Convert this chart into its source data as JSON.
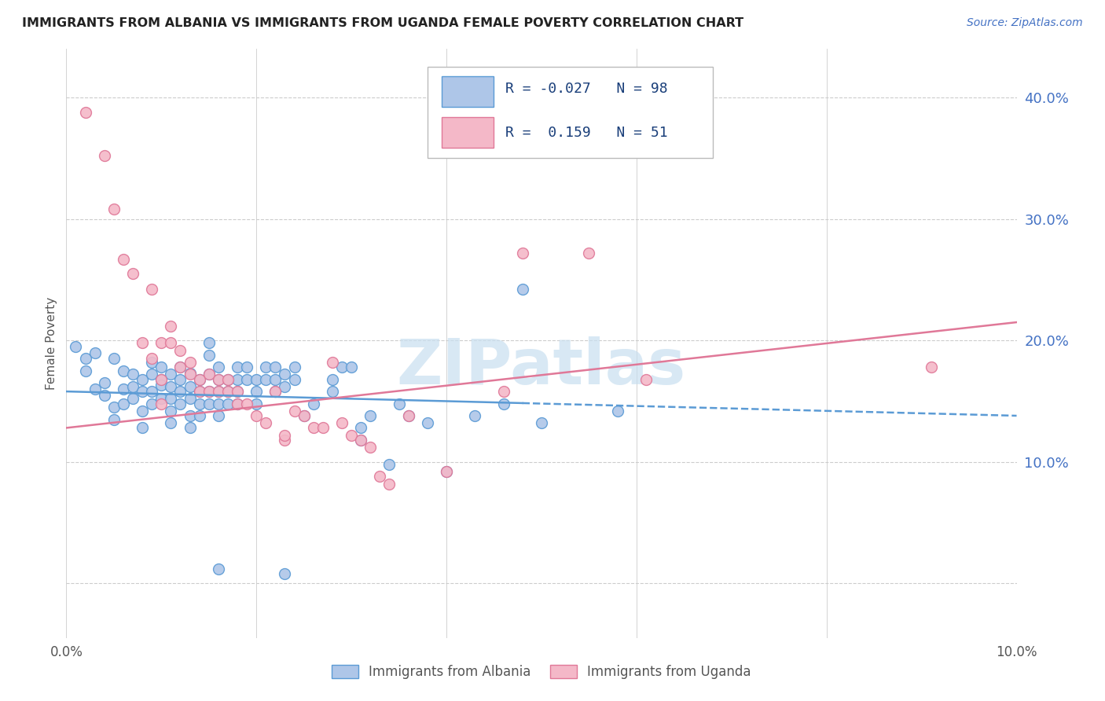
{
  "title": "IMMIGRANTS FROM ALBANIA VS IMMIGRANTS FROM UGANDA FEMALE POVERTY CORRELATION CHART",
  "source": "Source: ZipAtlas.com",
  "ylabel": "Female Poverty",
  "y_ticks": [
    0.0,
    0.1,
    0.2,
    0.3,
    0.4
  ],
  "y_tick_labels": [
    "",
    "10.0%",
    "20.0%",
    "30.0%",
    "40.0%"
  ],
  "x_range": [
    0.0,
    0.1
  ],
  "y_range": [
    -0.045,
    0.44
  ],
  "albania_R": -0.027,
  "albania_N": 98,
  "uganda_R": 0.159,
  "uganda_N": 51,
  "albania_color": "#aec6e8",
  "uganda_color": "#f4b8c8",
  "albania_edge_color": "#5b9bd5",
  "uganda_edge_color": "#e07898",
  "albania_line_color": "#5b9bd5",
  "uganda_line_color": "#e07898",
  "watermark_color": "#c8dff0",
  "legend_label_albania": "Immigrants from Albania",
  "legend_label_uganda": "Immigrants from Uganda",
  "albania_line_y0": 0.158,
  "albania_line_y1": 0.138,
  "uganda_line_y0": 0.128,
  "uganda_line_y1": 0.215,
  "albania_scatter": [
    [
      0.001,
      0.195
    ],
    [
      0.002,
      0.185
    ],
    [
      0.002,
      0.175
    ],
    [
      0.003,
      0.19
    ],
    [
      0.003,
      0.16
    ],
    [
      0.004,
      0.155
    ],
    [
      0.004,
      0.165
    ],
    [
      0.005,
      0.185
    ],
    [
      0.005,
      0.145
    ],
    [
      0.005,
      0.135
    ],
    [
      0.006,
      0.175
    ],
    [
      0.006,
      0.16
    ],
    [
      0.006,
      0.148
    ],
    [
      0.007,
      0.172
    ],
    [
      0.007,
      0.162
    ],
    [
      0.007,
      0.152
    ],
    [
      0.008,
      0.168
    ],
    [
      0.008,
      0.158
    ],
    [
      0.008,
      0.142
    ],
    [
      0.008,
      0.128
    ],
    [
      0.009,
      0.182
    ],
    [
      0.009,
      0.172
    ],
    [
      0.009,
      0.158
    ],
    [
      0.009,
      0.148
    ],
    [
      0.01,
      0.178
    ],
    [
      0.01,
      0.168
    ],
    [
      0.01,
      0.163
    ],
    [
      0.01,
      0.152
    ],
    [
      0.011,
      0.172
    ],
    [
      0.011,
      0.162
    ],
    [
      0.011,
      0.152
    ],
    [
      0.011,
      0.142
    ],
    [
      0.011,
      0.132
    ],
    [
      0.012,
      0.178
    ],
    [
      0.012,
      0.168
    ],
    [
      0.012,
      0.158
    ],
    [
      0.012,
      0.148
    ],
    [
      0.013,
      0.173
    ],
    [
      0.013,
      0.162
    ],
    [
      0.013,
      0.152
    ],
    [
      0.013,
      0.138
    ],
    [
      0.013,
      0.128
    ],
    [
      0.014,
      0.168
    ],
    [
      0.014,
      0.158
    ],
    [
      0.014,
      0.148
    ],
    [
      0.014,
      0.138
    ],
    [
      0.015,
      0.198
    ],
    [
      0.015,
      0.188
    ],
    [
      0.015,
      0.172
    ],
    [
      0.015,
      0.158
    ],
    [
      0.015,
      0.148
    ],
    [
      0.016,
      0.178
    ],
    [
      0.016,
      0.168
    ],
    [
      0.016,
      0.158
    ],
    [
      0.016,
      0.148
    ],
    [
      0.016,
      0.138
    ],
    [
      0.017,
      0.168
    ],
    [
      0.017,
      0.158
    ],
    [
      0.017,
      0.148
    ],
    [
      0.018,
      0.178
    ],
    [
      0.018,
      0.168
    ],
    [
      0.018,
      0.158
    ],
    [
      0.018,
      0.148
    ],
    [
      0.019,
      0.178
    ],
    [
      0.019,
      0.168
    ],
    [
      0.02,
      0.168
    ],
    [
      0.02,
      0.158
    ],
    [
      0.02,
      0.148
    ],
    [
      0.021,
      0.178
    ],
    [
      0.021,
      0.168
    ],
    [
      0.022,
      0.178
    ],
    [
      0.022,
      0.168
    ],
    [
      0.022,
      0.158
    ],
    [
      0.023,
      0.172
    ],
    [
      0.023,
      0.162
    ],
    [
      0.024,
      0.178
    ],
    [
      0.024,
      0.168
    ],
    [
      0.025,
      0.138
    ],
    [
      0.026,
      0.148
    ],
    [
      0.028,
      0.168
    ],
    [
      0.028,
      0.158
    ],
    [
      0.029,
      0.178
    ],
    [
      0.03,
      0.178
    ],
    [
      0.031,
      0.128
    ],
    [
      0.031,
      0.118
    ],
    [
      0.032,
      0.138
    ],
    [
      0.034,
      0.098
    ],
    [
      0.035,
      0.148
    ],
    [
      0.036,
      0.138
    ],
    [
      0.038,
      0.132
    ],
    [
      0.04,
      0.092
    ],
    [
      0.043,
      0.138
    ],
    [
      0.046,
      0.148
    ],
    [
      0.048,
      0.242
    ],
    [
      0.05,
      0.132
    ],
    [
      0.058,
      0.142
    ],
    [
      0.016,
      0.012
    ],
    [
      0.023,
      0.008
    ]
  ],
  "uganda_scatter": [
    [
      0.002,
      0.388
    ],
    [
      0.004,
      0.352
    ],
    [
      0.005,
      0.308
    ],
    [
      0.006,
      0.267
    ],
    [
      0.007,
      0.255
    ],
    [
      0.008,
      0.198
    ],
    [
      0.009,
      0.242
    ],
    [
      0.009,
      0.185
    ],
    [
      0.01,
      0.168
    ],
    [
      0.01,
      0.198
    ],
    [
      0.011,
      0.212
    ],
    [
      0.011,
      0.198
    ],
    [
      0.012,
      0.192
    ],
    [
      0.012,
      0.178
    ],
    [
      0.013,
      0.172
    ],
    [
      0.013,
      0.182
    ],
    [
      0.014,
      0.158
    ],
    [
      0.014,
      0.168
    ],
    [
      0.015,
      0.172
    ],
    [
      0.015,
      0.158
    ],
    [
      0.016,
      0.168
    ],
    [
      0.016,
      0.158
    ],
    [
      0.017,
      0.168
    ],
    [
      0.017,
      0.158
    ],
    [
      0.018,
      0.158
    ],
    [
      0.018,
      0.148
    ],
    [
      0.019,
      0.148
    ],
    [
      0.02,
      0.138
    ],
    [
      0.021,
      0.132
    ],
    [
      0.022,
      0.158
    ],
    [
      0.023,
      0.118
    ],
    [
      0.023,
      0.122
    ],
    [
      0.024,
      0.142
    ],
    [
      0.025,
      0.138
    ],
    [
      0.026,
      0.128
    ],
    [
      0.027,
      0.128
    ],
    [
      0.028,
      0.182
    ],
    [
      0.029,
      0.132
    ],
    [
      0.03,
      0.122
    ],
    [
      0.031,
      0.118
    ],
    [
      0.032,
      0.112
    ],
    [
      0.033,
      0.088
    ],
    [
      0.034,
      0.082
    ],
    [
      0.036,
      0.138
    ],
    [
      0.04,
      0.092
    ],
    [
      0.046,
      0.158
    ],
    [
      0.048,
      0.272
    ],
    [
      0.055,
      0.272
    ],
    [
      0.061,
      0.168
    ],
    [
      0.091,
      0.178
    ],
    [
      0.01,
      0.148
    ]
  ]
}
